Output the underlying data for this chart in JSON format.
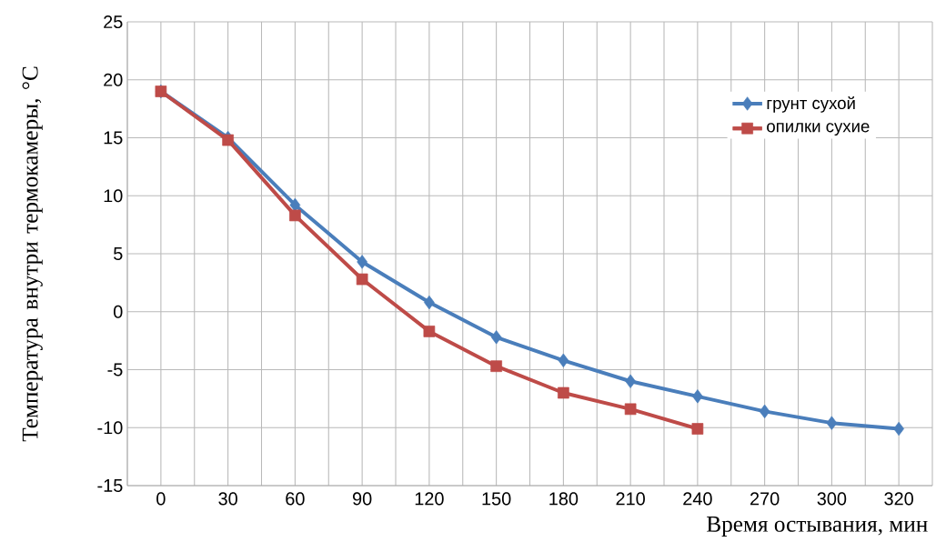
{
  "chart_data": {
    "type": "line",
    "ylabel": "Температура внутри термокамеры, °С",
    "xlabel": "Время остывания, мин",
    "categories": [
      "0",
      "30",
      "60",
      "90",
      "120",
      "150",
      "180",
      "210",
      "240",
      "270",
      "300",
      "320"
    ],
    "series": [
      {
        "name": "грунт сухой",
        "color": "#4a7ebb",
        "marker": "diamond",
        "values": [
          19.0,
          15.0,
          9.2,
          4.3,
          0.8,
          -2.2,
          -4.2,
          -6.0,
          -7.3,
          -8.6,
          -9.6,
          -10.1
        ]
      },
      {
        "name": "опилки сухие",
        "color": "#be4b48",
        "marker": "square",
        "values": [
          19.0,
          14.8,
          8.3,
          2.8,
          -1.7,
          -4.7,
          -7.0,
          -8.4,
          -10.1,
          null,
          null,
          null
        ]
      }
    ],
    "ylim": [
      -15,
      25
    ],
    "yticks": [
      -15,
      -10,
      -5,
      0,
      5,
      10,
      15,
      20,
      25
    ],
    "grid": true,
    "legend": "top right",
    "line_style": "solid"
  }
}
